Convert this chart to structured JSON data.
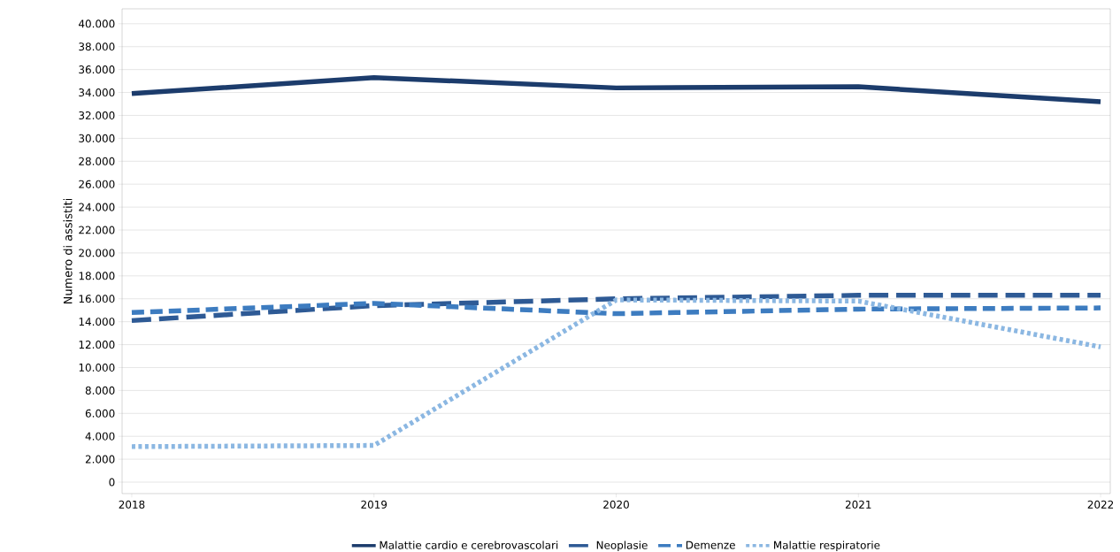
{
  "chart_data": {
    "type": "line",
    "ylabel": "Numero di assistiti",
    "x": [
      2018,
      2019,
      2020,
      2021,
      2022
    ],
    "xlim": [
      2017.96,
      2022.04
    ],
    "xticks": [
      2018,
      2019,
      2020,
      2021,
      2022
    ],
    "ylim": [
      -1000,
      41300
    ],
    "yticks": [
      {
        "value": 0,
        "label": "0"
      },
      {
        "value": 2000,
        "label": "2.000"
      },
      {
        "value": 4000,
        "label": "4.000"
      },
      {
        "value": 6000,
        "label": "6.000"
      },
      {
        "value": 8000,
        "label": "8.000"
      },
      {
        "value": 10000,
        "label": "10.000"
      },
      {
        "value": 12000,
        "label": "12.000"
      },
      {
        "value": 14000,
        "label": "14.000"
      },
      {
        "value": 16000,
        "label": "16.000"
      },
      {
        "value": 18000,
        "label": "18.000"
      },
      {
        "value": 20000,
        "label": "20.000"
      },
      {
        "value": 22000,
        "label": "22.000"
      },
      {
        "value": 24000,
        "label": "24.000"
      },
      {
        "value": 26000,
        "label": "26.000"
      },
      {
        "value": 28000,
        "label": "28.000"
      },
      {
        "value": 30000,
        "label": "30.000"
      },
      {
        "value": 32000,
        "label": "32.000"
      },
      {
        "value": 34000,
        "label": "34.000"
      },
      {
        "value": 36000,
        "label": "36.000"
      },
      {
        "value": 38000,
        "label": "38.000"
      },
      {
        "value": 40000,
        "label": "40.000"
      }
    ],
    "grid": "y",
    "legend": "bottom",
    "marker": "none",
    "series": [
      {
        "name": "Malattie cardio e cerebrovascolari",
        "color": "#1c3c6c",
        "line_style": "solid",
        "values": [
          33900,
          35300,
          34400,
          34500,
          33200
        ]
      },
      {
        "name": "Neoplasie",
        "color": "#2e5a95",
        "line_style": "dashed",
        "values": [
          14100,
          15400,
          16000,
          16300,
          16300
        ]
      },
      {
        "name": "Demenze",
        "color": "#3d7cc0",
        "line_style": "dashed",
        "values": [
          14800,
          15600,
          14700,
          15100,
          15200
        ]
      },
      {
        "name": "Malattie respiratorie",
        "color": "#8bb7e2",
        "line_style": "dotted",
        "values": [
          3100,
          3200,
          15900,
          15800,
          11800
        ]
      }
    ]
  }
}
